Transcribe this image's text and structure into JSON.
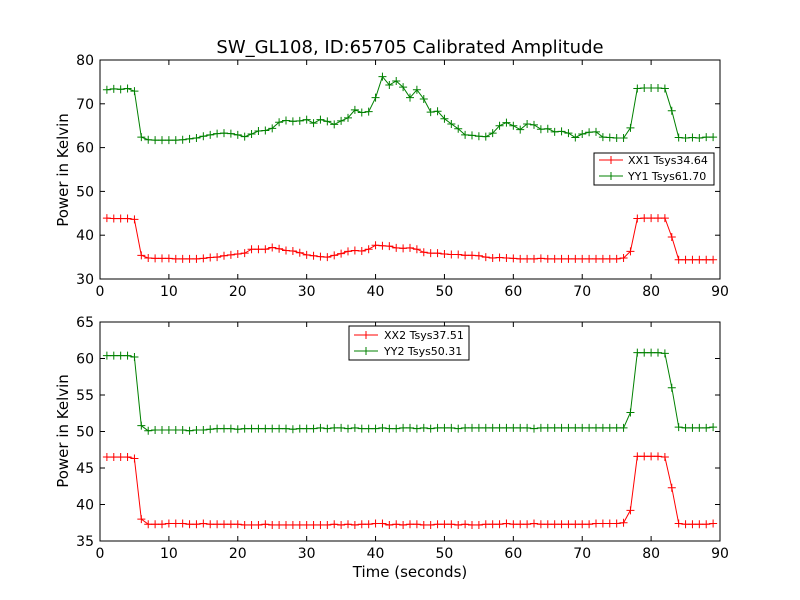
{
  "chart_data": [
    {
      "type": "line",
      "title": "SW_GL108, ID:65705 Calibrated Amplitude",
      "xlabel": "",
      "ylabel": "Power in Kelvin",
      "xlim": [
        0,
        90
      ],
      "ylim": [
        30,
        80
      ],
      "xticks": [
        "0",
        "10",
        "20",
        "30",
        "40",
        "50",
        "60",
        "70",
        "80",
        "90"
      ],
      "yticks": [
        "30",
        "40",
        "50",
        "60",
        "70",
        "80"
      ],
      "legend_position": "center-right",
      "x": [
        1,
        2,
        3,
        4,
        5,
        6,
        7,
        8,
        9,
        10,
        11,
        12,
        13,
        14,
        15,
        16,
        17,
        18,
        19,
        20,
        21,
        22,
        23,
        24,
        25,
        26,
        27,
        28,
        29,
        30,
        31,
        32,
        33,
        34,
        35,
        36,
        37,
        38,
        39,
        40,
        41,
        42,
        43,
        44,
        45,
        46,
        47,
        48,
        49,
        50,
        51,
        52,
        53,
        54,
        55,
        56,
        57,
        58,
        59,
        60,
        61,
        62,
        63,
        64,
        65,
        66,
        67,
        68,
        69,
        70,
        71,
        72,
        73,
        74,
        75,
        76,
        77,
        78,
        79,
        80,
        81,
        82,
        83,
        84,
        85,
        86,
        87,
        88,
        89
      ],
      "series": [
        {
          "name": "XX1 Tsys34.64",
          "color": "#ff0000",
          "values": [
            43.9,
            43.8,
            43.8,
            43.8,
            43.6,
            35.4,
            34.8,
            34.7,
            34.7,
            34.7,
            34.6,
            34.6,
            34.6,
            34.6,
            34.7,
            34.9,
            35.0,
            35.3,
            35.5,
            35.7,
            35.9,
            36.8,
            36.8,
            36.8,
            37.2,
            36.9,
            36.5,
            36.4,
            36.0,
            35.5,
            35.3,
            35.1,
            35.0,
            35.4,
            35.8,
            36.3,
            36.5,
            36.4,
            36.8,
            37.7,
            37.6,
            37.5,
            37.1,
            37.0,
            37.1,
            36.8,
            36.1,
            35.9,
            35.9,
            35.7,
            35.6,
            35.6,
            35.4,
            35.4,
            35.3,
            35.0,
            34.8,
            34.9,
            34.8,
            34.7,
            34.6,
            34.6,
            34.6,
            34.7,
            34.6,
            34.6,
            34.6,
            34.6,
            34.6,
            34.6,
            34.6,
            34.6,
            34.6,
            34.6,
            34.6,
            34.8,
            36.3,
            43.8,
            43.9,
            43.9,
            43.9,
            43.9,
            39.6,
            34.4,
            34.4,
            34.4,
            34.4,
            34.4,
            34.4
          ]
        },
        {
          "name": "YY1 Tsys61.70",
          "color": "#008000",
          "values": [
            73.2,
            73.4,
            73.3,
            73.5,
            72.9,
            62.4,
            61.8,
            61.7,
            61.7,
            61.7,
            61.7,
            61.8,
            62.0,
            62.2,
            62.6,
            62.9,
            63.2,
            63.3,
            63.2,
            62.9,
            62.5,
            63.1,
            63.8,
            63.9,
            64.4,
            65.8,
            66.2,
            66.0,
            66.1,
            66.4,
            65.6,
            66.4,
            66.0,
            65.3,
            66.1,
            66.8,
            68.6,
            68.0,
            68.2,
            71.4,
            76.2,
            74.3,
            75.2,
            73.8,
            71.4,
            73.2,
            71.1,
            68.1,
            68.3,
            66.6,
            65.4,
            64.3,
            62.9,
            62.8,
            62.6,
            62.5,
            63.3,
            65.0,
            65.7,
            65.0,
            64.1,
            65.4,
            65.2,
            64.2,
            64.3,
            63.6,
            63.7,
            63.3,
            62.3,
            63.1,
            63.5,
            63.6,
            62.4,
            62.3,
            62.2,
            62.2,
            64.5,
            73.5,
            73.6,
            73.6,
            73.6,
            73.5,
            68.4,
            62.3,
            62.2,
            62.3,
            62.2,
            62.4,
            62.4
          ]
        }
      ]
    },
    {
      "type": "line",
      "title": "",
      "xlabel": "Time (seconds)",
      "ylabel": "Power in Kelvin",
      "xlim": [
        0,
        90
      ],
      "ylim": [
        35,
        65
      ],
      "xticks": [
        "0",
        "10",
        "20",
        "30",
        "40",
        "50",
        "60",
        "70",
        "80",
        "90"
      ],
      "yticks": [
        "35",
        "40",
        "45",
        "50",
        "55",
        "60",
        "65"
      ],
      "legend_position": "top-center",
      "x": [
        1,
        2,
        3,
        4,
        5,
        6,
        7,
        8,
        9,
        10,
        11,
        12,
        13,
        14,
        15,
        16,
        17,
        18,
        19,
        20,
        21,
        22,
        23,
        24,
        25,
        26,
        27,
        28,
        29,
        30,
        31,
        32,
        33,
        34,
        35,
        36,
        37,
        38,
        39,
        40,
        41,
        42,
        43,
        44,
        45,
        46,
        47,
        48,
        49,
        50,
        51,
        52,
        53,
        54,
        55,
        56,
        57,
        58,
        59,
        60,
        61,
        62,
        63,
        64,
        65,
        66,
        67,
        68,
        69,
        70,
        71,
        72,
        73,
        74,
        75,
        76,
        77,
        78,
        79,
        80,
        81,
        82,
        83,
        84,
        85,
        86,
        87,
        88,
        89
      ],
      "series": [
        {
          "name": "XX2 Tsys37.51",
          "color": "#ff0000",
          "values": [
            46.5,
            46.5,
            46.5,
            46.5,
            46.3,
            38.0,
            37.3,
            37.3,
            37.3,
            37.4,
            37.4,
            37.4,
            37.3,
            37.3,
            37.4,
            37.3,
            37.3,
            37.3,
            37.3,
            37.3,
            37.2,
            37.2,
            37.2,
            37.3,
            37.2,
            37.2,
            37.2,
            37.2,
            37.2,
            37.2,
            37.2,
            37.2,
            37.2,
            37.3,
            37.2,
            37.3,
            37.2,
            37.3,
            37.3,
            37.4,
            37.4,
            37.2,
            37.3,
            37.2,
            37.3,
            37.3,
            37.2,
            37.2,
            37.3,
            37.3,
            37.3,
            37.2,
            37.3,
            37.2,
            37.2,
            37.3,
            37.3,
            37.3,
            37.4,
            37.3,
            37.3,
            37.3,
            37.4,
            37.3,
            37.3,
            37.3,
            37.3,
            37.3,
            37.3,
            37.3,
            37.3,
            37.4,
            37.4,
            37.4,
            37.4,
            37.5,
            39.2,
            46.6,
            46.6,
            46.6,
            46.6,
            46.5,
            42.3,
            37.4,
            37.3,
            37.3,
            37.3,
            37.3,
            37.4
          ]
        },
        {
          "name": "YY2 Tsys50.31",
          "color": "#008000",
          "values": [
            60.4,
            60.4,
            60.4,
            60.4,
            60.2,
            50.8,
            50.1,
            50.2,
            50.2,
            50.2,
            50.2,
            50.2,
            50.1,
            50.2,
            50.2,
            50.3,
            50.4,
            50.4,
            50.4,
            50.3,
            50.4,
            50.4,
            50.4,
            50.4,
            50.4,
            50.4,
            50.4,
            50.3,
            50.4,
            50.4,
            50.4,
            50.5,
            50.4,
            50.5,
            50.5,
            50.4,
            50.5,
            50.4,
            50.4,
            50.4,
            50.5,
            50.4,
            50.4,
            50.5,
            50.5,
            50.4,
            50.5,
            50.4,
            50.5,
            50.5,
            50.5,
            50.4,
            50.5,
            50.5,
            50.5,
            50.5,
            50.5,
            50.5,
            50.5,
            50.5,
            50.5,
            50.5,
            50.4,
            50.5,
            50.5,
            50.5,
            50.5,
            50.5,
            50.5,
            50.5,
            50.5,
            50.5,
            50.5,
            50.5,
            50.5,
            50.5,
            52.6,
            60.8,
            60.8,
            60.8,
            60.8,
            60.7,
            56.0,
            50.6,
            50.5,
            50.5,
            50.5,
            50.5,
            50.6
          ]
        }
      ]
    }
  ]
}
